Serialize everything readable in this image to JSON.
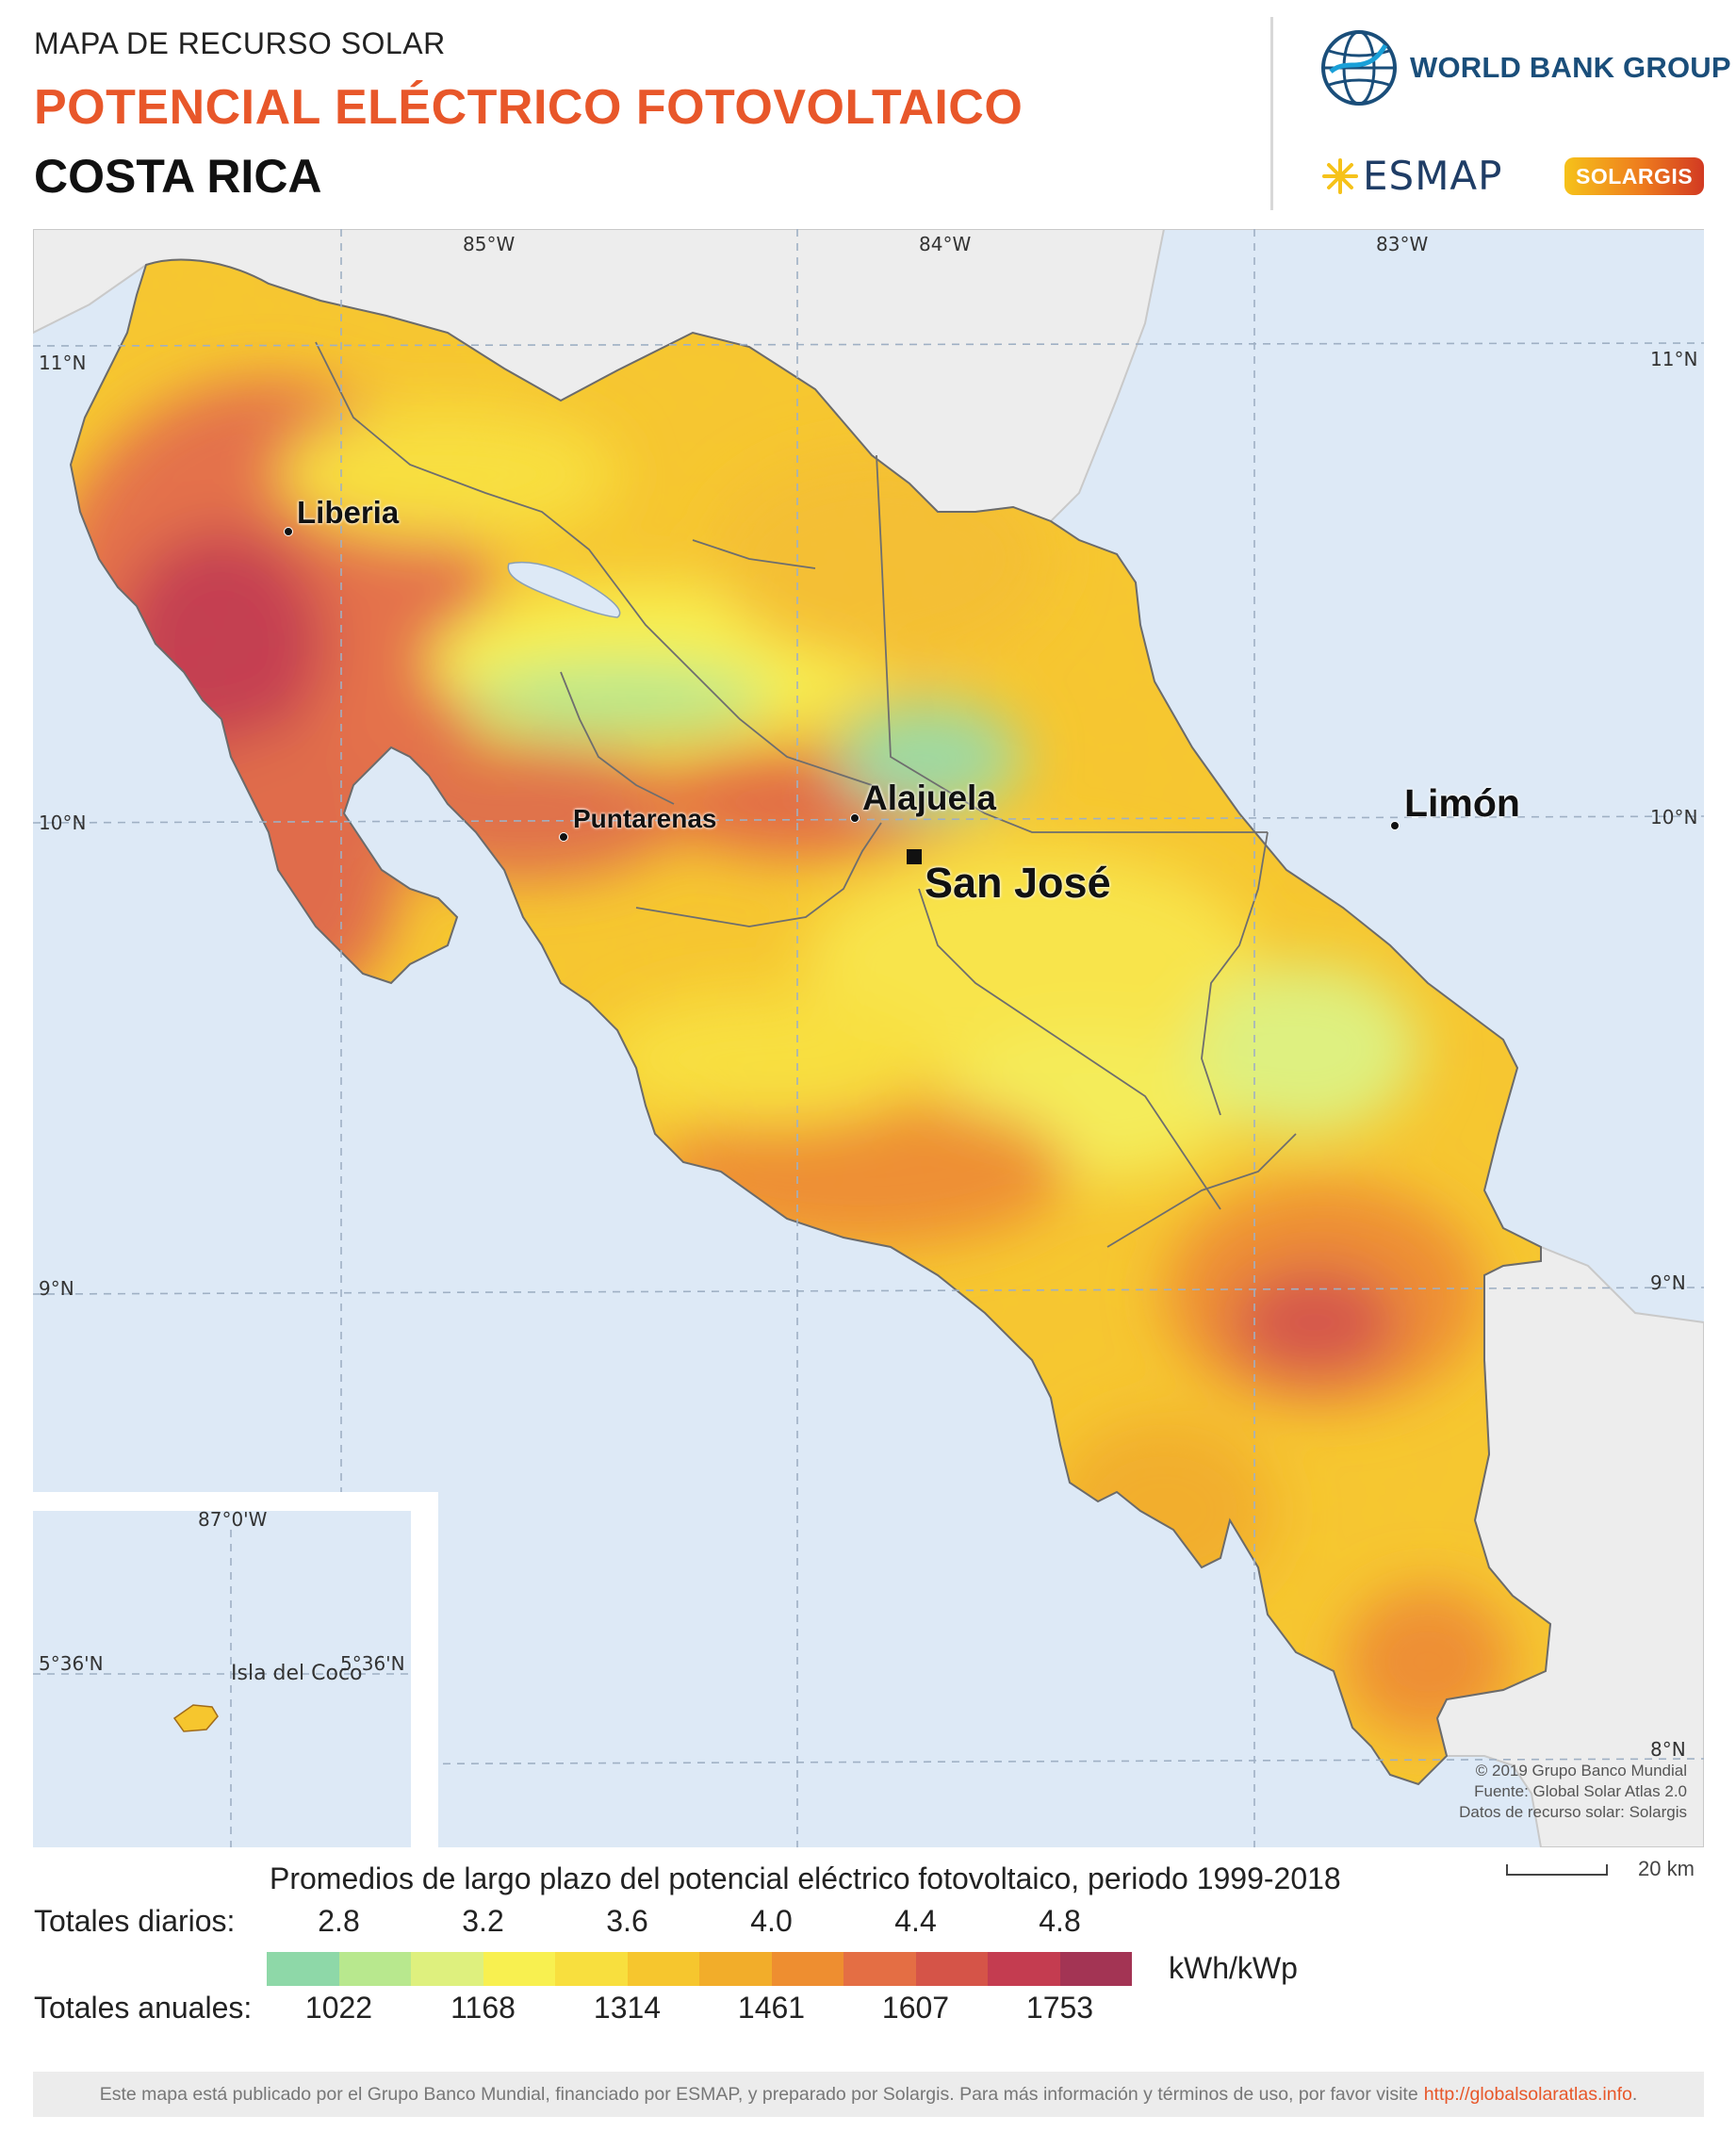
{
  "header": {
    "subtitle": "MAPA DE RECURSO SOLAR",
    "title": "POTENCIAL ELÉCTRICO FOTOVOLTAICO",
    "country": "COSTA RICA"
  },
  "logos": {
    "world_bank": "WORLD BANK GROUP",
    "esmap": "ESMAP",
    "solargis": "SOLARGIS"
  },
  "map": {
    "longitude_labels": [
      "85°W",
      "84°W",
      "83°W"
    ],
    "latitude_labels": [
      "11°N",
      "10°N",
      "9°N",
      "8°N"
    ],
    "cities": [
      {
        "name": "Liberia",
        "type": "city"
      },
      {
        "name": "Puntarenas",
        "type": "city"
      },
      {
        "name": "Alajuela",
        "type": "city"
      },
      {
        "name": "San José",
        "type": "capital"
      },
      {
        "name": "Limón",
        "type": "city"
      }
    ],
    "inset": {
      "longitude_label": "87°0'W",
      "latitude_label_left": "5°36'N",
      "latitude_label_right": "5°36'N",
      "island": "Isla del Coco"
    },
    "credits": [
      "© 2019 Grupo Banco Mundial",
      "Fuente: Global Solar Atlas 2.0",
      "Datos de recurso solar: Solargis"
    ],
    "scale": "20 km"
  },
  "legend": {
    "title": "Promedios de largo plazo del potencial eléctrico fotovoltaico, periodo 1999-2018",
    "daily_label": "Totales diarios:",
    "annual_label": "Totales anuales:",
    "daily_values": [
      "2.8",
      "3.2",
      "3.6",
      "4.0",
      "4.4",
      "4.8"
    ],
    "annual_values": [
      "1022",
      "1168",
      "1314",
      "1461",
      "1607",
      "1753"
    ],
    "unit": "kWh/kWp",
    "colors": [
      "#8ed8a8",
      "#b8e88e",
      "#def07e",
      "#f8f050",
      "#f8df3e",
      "#f6c62e",
      "#f2ad2a",
      "#ee8e30",
      "#e46e44",
      "#d55448",
      "#c43c50",
      "#a33454"
    ]
  },
  "footer": {
    "text": "Este mapa está publicado por el Grupo Banco Mundial, financiado por ESMAP, y preparado por Solargis. Para más información y términos de uso, por favor visite",
    "link": "http://globalsolaratlas.info",
    "end": "."
  }
}
